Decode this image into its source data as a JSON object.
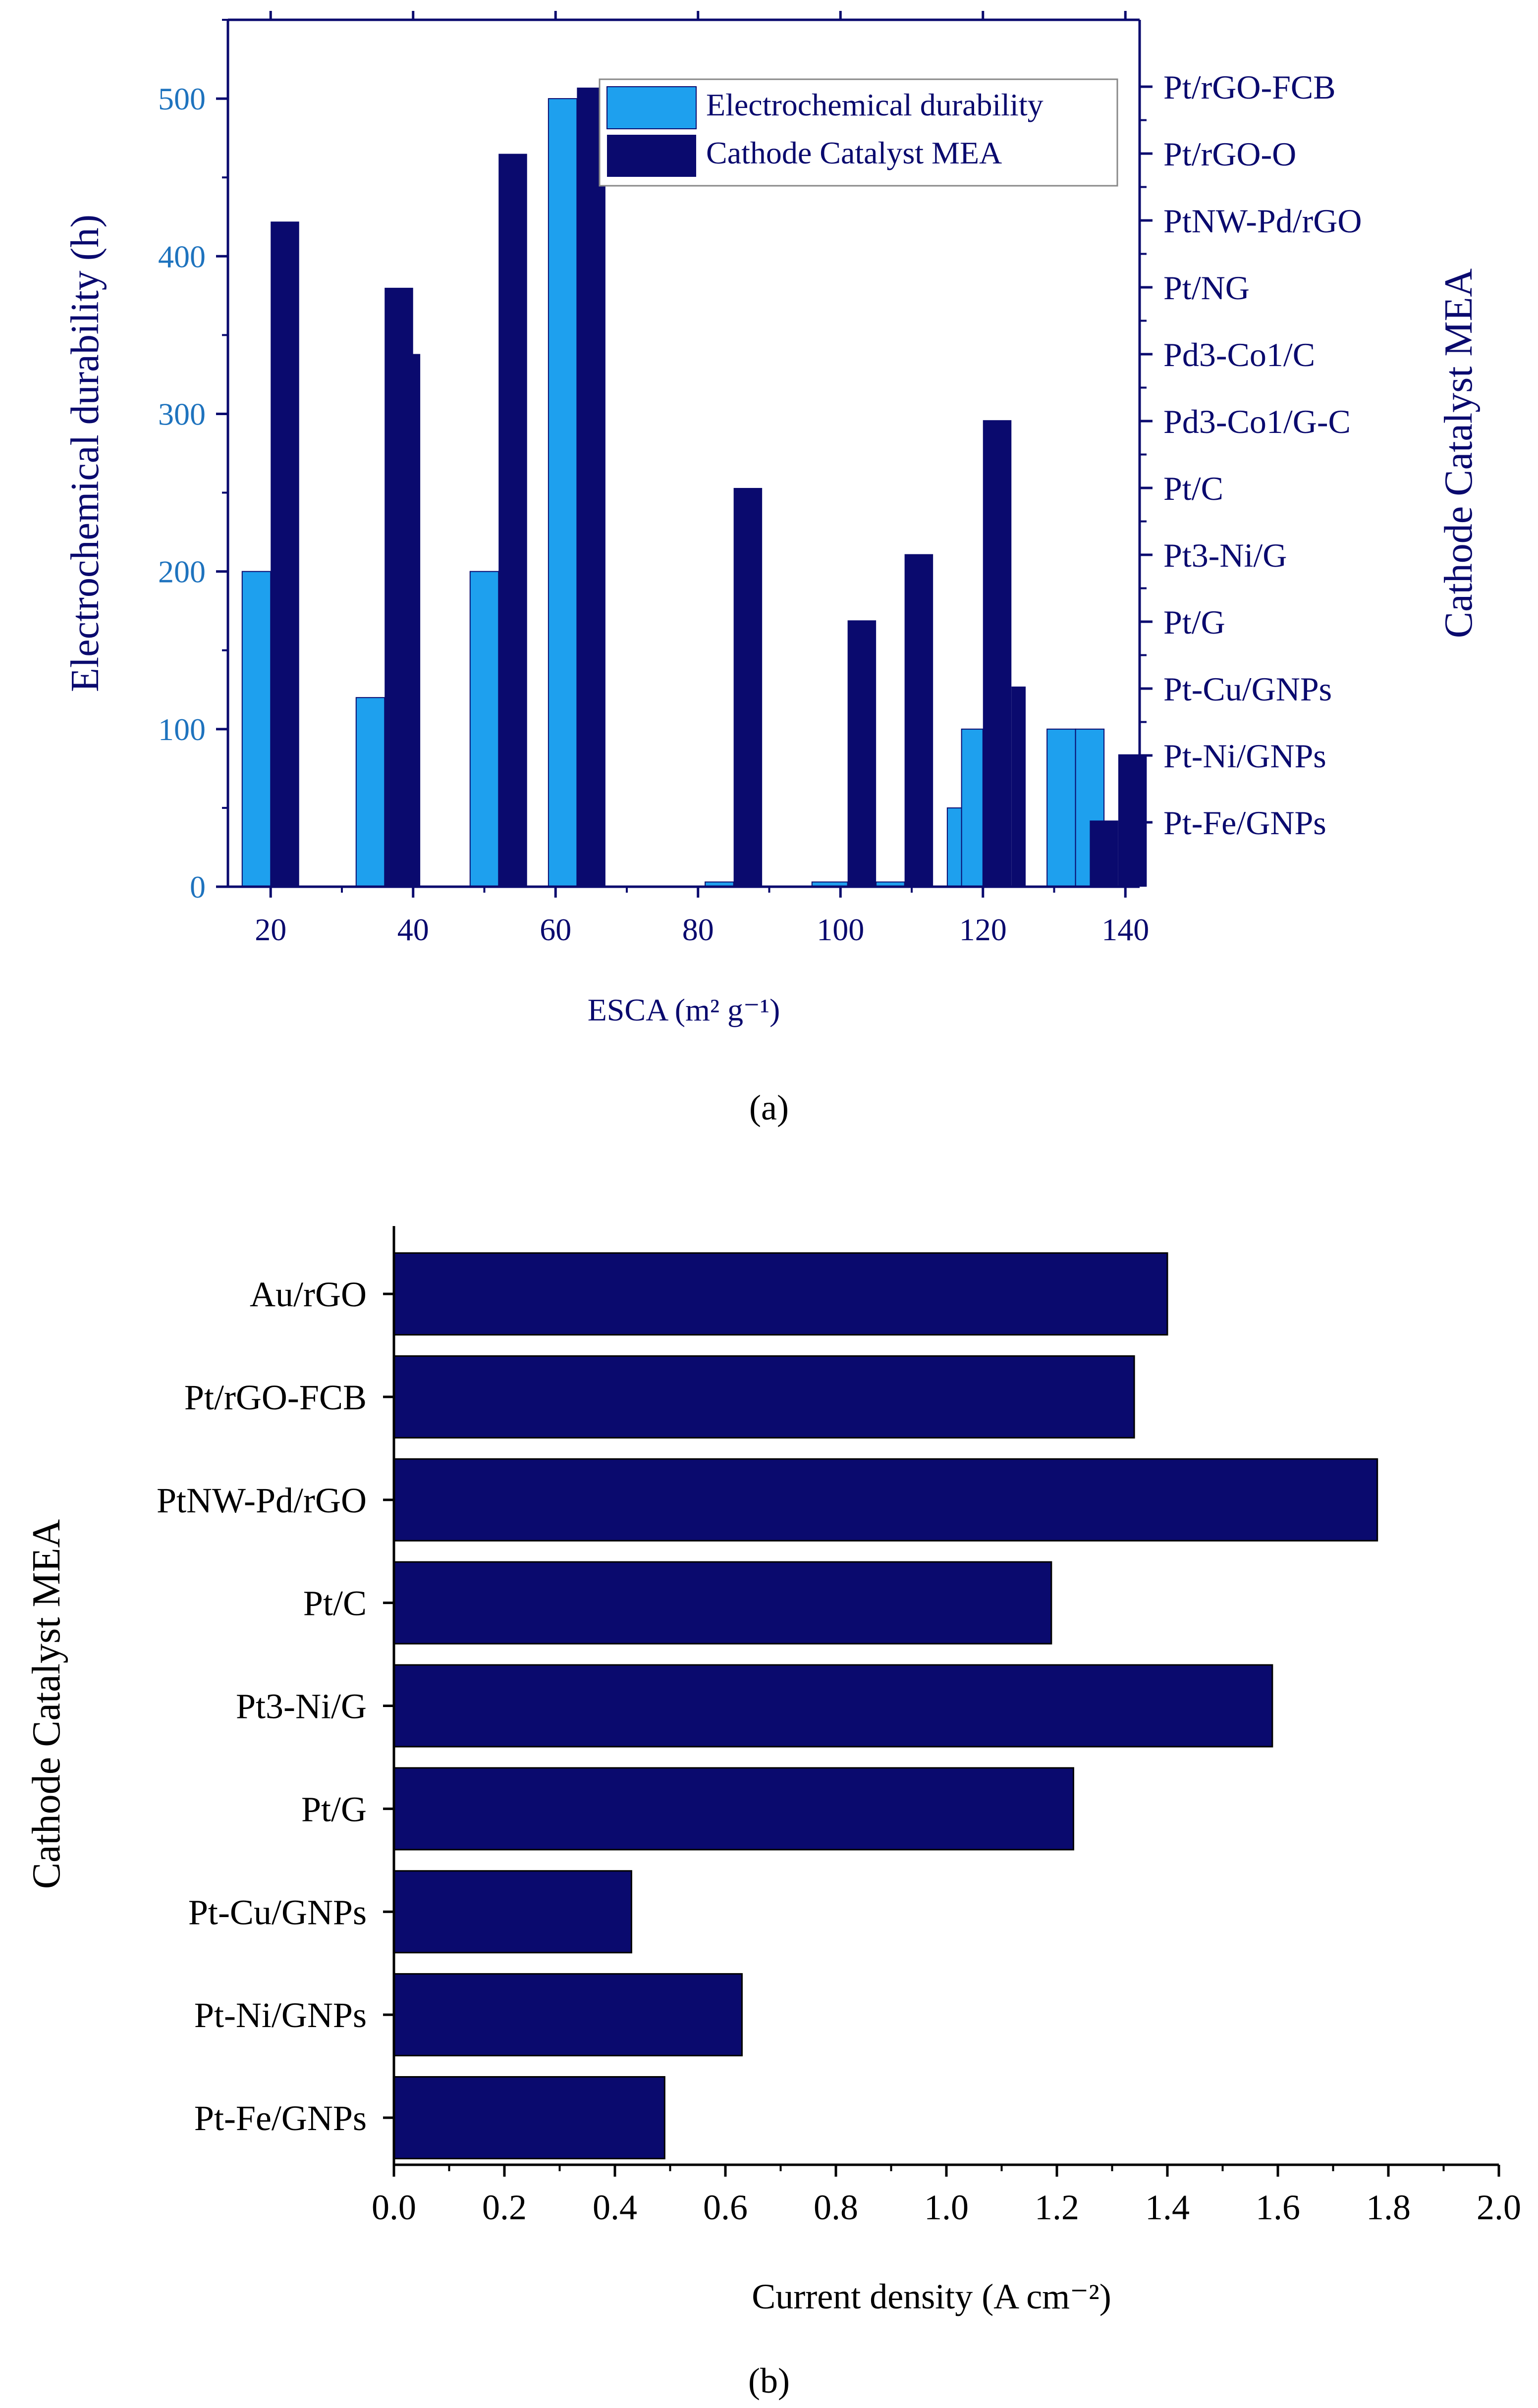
{
  "chart_data": [
    {
      "type": "bar",
      "xlabel": "ESCA (m² g⁻¹)",
      "ylabel": "Electrochemical durability (h)",
      "y2label": "Cathode Catalyst MEA",
      "caption": "(a)",
      "xlim": [
        14,
        142
      ],
      "xticks": [
        "20",
        "40",
        "60",
        "80",
        "100",
        "120",
        "140"
      ],
      "ylim": [
        0,
        550
      ],
      "yticks": [
        "0",
        "100",
        "200",
        "300",
        "400",
        "500"
      ],
      "y2_categories": [
        "Pt-Fe/GNPs",
        "Pt-Ni/GNPs",
        "Pt-Cu/GNPs",
        "Pt/G",
        "Pt3-Ni/G",
        "Pt/C",
        "Pd3-Co1/G-C",
        "Pd3-Co1/C",
        "Pt/NG",
        "PtNW-Pd/rGO",
        "Pt/rGO-O",
        "Pt/rGO-FCB"
      ],
      "legend": {
        "position": "top-right",
        "items": [
          "Electrochemical durability",
          "Cathode Catalyst MEA"
        ]
      },
      "colors": {
        "durability": "#1ea0ee",
        "mea": "#0a0a6e",
        "axis": "#0a0a6e",
        "left_axis_ticks": "#1e73be"
      },
      "series": [
        {
          "name": "Electrochemical durability",
          "bars": [
            {
              "x0": 16,
              "x1": 20,
              "y": 200
            },
            {
              "x0": 32,
              "x1": 36,
              "y": 120
            },
            {
              "x0": 48,
              "x1": 52,
              "y": 200
            },
            {
              "x0": 59,
              "x1": 63,
              "y": 500
            },
            {
              "x0": 81,
              "x1": 85,
              "y": 3
            },
            {
              "x0": 96,
              "x1": 101,
              "y": 3
            },
            {
              "x0": 105,
              "x1": 109,
              "y": 3
            },
            {
              "x0": 115,
              "x1": 120,
              "y": 50
            },
            {
              "x0": 117,
              "x1": 120,
              "y": 100
            },
            {
              "x0": 129,
              "x1": 133,
              "y": 100
            },
            {
              "x0": 133,
              "x1": 137,
              "y": 100
            }
          ]
        },
        {
          "name": "Cathode Catalyst MEA",
          "bars": [
            {
              "x0": 20,
              "x1": 24,
              "y": 422
            },
            {
              "x0": 36,
              "x1": 40,
              "y": 380
            },
            {
              "x0": 39,
              "x1": 41,
              "y": 338
            },
            {
              "x0": 52,
              "x1": 56,
              "y": 465
            },
            {
              "x0": 63,
              "x1": 67,
              "y": 507
            },
            {
              "x0": 85,
              "x1": 89,
              "y": 253
            },
            {
              "x0": 101,
              "x1": 105,
              "y": 169
            },
            {
              "x0": 109,
              "x1": 113,
              "y": 211
            },
            {
              "x0": 120,
              "x1": 124,
              "y": 296
            },
            {
              "x0": 124,
              "x1": 126,
              "y": 127
            },
            {
              "x0": 135,
              "x1": 139,
              "y": 42
            },
            {
              "x0": 139,
              "x1": 143,
              "y": 84
            }
          ]
        }
      ]
    },
    {
      "type": "bar",
      "orientation": "horizontal",
      "xlabel": "Current density (A cm⁻²)",
      "ylabel": "Cathode Catalyst MEA",
      "caption": "(b)",
      "xlim": [
        0,
        2
      ],
      "xticks": [
        "0.0",
        "0.2",
        "0.4",
        "0.6",
        "0.8",
        "1.0",
        "1.2",
        "1.4",
        "1.6",
        "1.8",
        "2.0"
      ],
      "categories": [
        "Au/rGO",
        "Pt/rGO-FCB",
        "PtNW-Pd/rGO",
        "Pt/C",
        "Pt3-Ni/G",
        "Pt/G",
        "Pt-Cu/GNPs",
        "Pt-Ni/GNPs",
        "Pt-Fe/GNPs"
      ],
      "values": [
        1.4,
        1.34,
        1.78,
        1.19,
        1.59,
        1.23,
        0.43,
        0.63,
        0.49
      ],
      "colors": {
        "bar": "#0a0a6e",
        "axis": "#000000"
      }
    }
  ]
}
